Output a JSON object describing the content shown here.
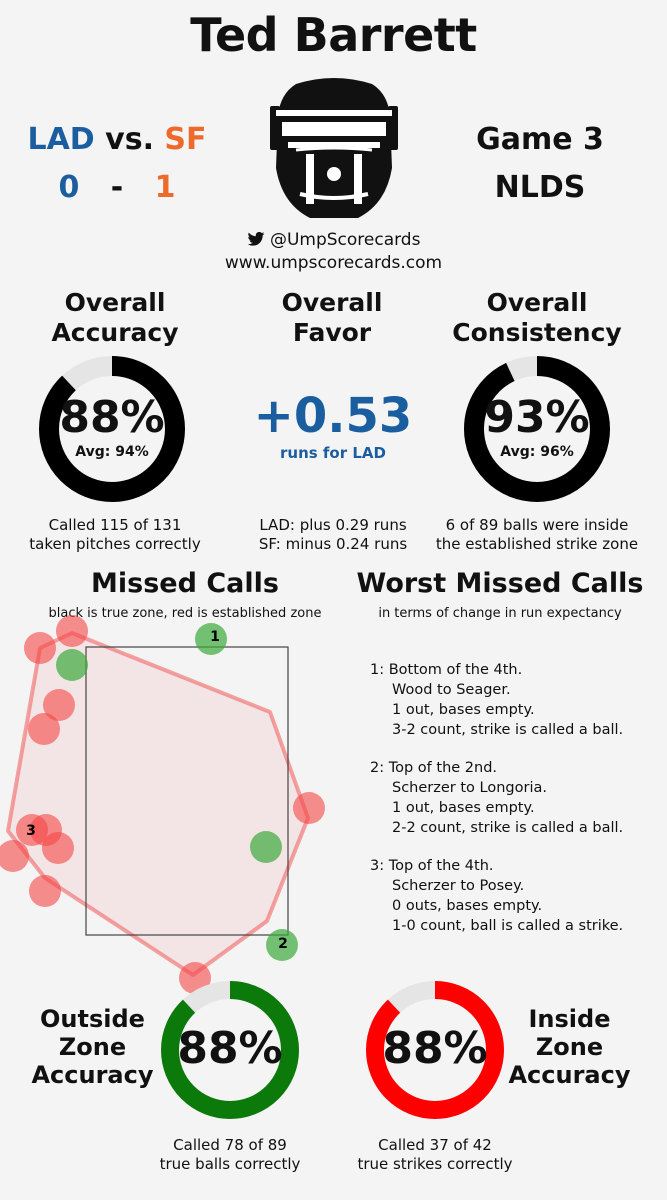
{
  "umpire_name": "Ted Barrett",
  "matchup": {
    "home": "LAD",
    "vs": "vs.",
    "away": "SF",
    "home_score": "0",
    "dash": "-",
    "away_score": "1"
  },
  "game": {
    "number": "Game 3",
    "series": "NLDS"
  },
  "social": {
    "twitter": "@UmpScorecards",
    "website": "www.umpscorecards.com"
  },
  "accuracy": {
    "heading_1": "Overall",
    "heading_2": "Accuracy",
    "value": "88%",
    "avg": "Avg: 94%",
    "fraction": 0.88,
    "desc_1": "Called 115 of 131",
    "desc_2": "taken pitches correctly"
  },
  "favor": {
    "heading_1": "Overall",
    "heading_2": "Favor",
    "value": "+0.53",
    "sub": "runs for LAD",
    "desc_1": "LAD: plus 0.29 runs",
    "desc_2": "SF: minus 0.24 runs"
  },
  "consistency": {
    "heading_1": "Overall",
    "heading_2": "Consistency",
    "value": "93%",
    "avg": "Avg: 96%",
    "fraction": 0.93,
    "desc_1": "6 of 89 balls were inside",
    "desc_2": "the established strike zone"
  },
  "missed_calls": {
    "title": "Missed Calls",
    "note": "black is true zone, red is established zone",
    "labels": [
      "1",
      "2",
      "3"
    ]
  },
  "worst": {
    "title": "Worst Missed Calls",
    "note": "in terms of change in run expectancy",
    "items": [
      {
        "l1": "1: Bottom of the 4th.",
        "l2": "Wood to Seager.",
        "l3": "1 out, bases empty.",
        "l4": "3-2 count, strike is called a ball."
      },
      {
        "l1": "2: Top of the 2nd.",
        "l2": "Scherzer to Longoria.",
        "l3": "1 out, bases empty.",
        "l4": "2-2 count, strike is called a ball."
      },
      {
        "l1": "3: Top of the 4th.",
        "l2": "Scherzer to Posey.",
        "l3": "0 outs, bases empty.",
        "l4": "1-0 count, ball is called a strike."
      }
    ]
  },
  "outside": {
    "label_1": "Outside",
    "label_2": "Zone",
    "label_3": "Accuracy",
    "value": "88%",
    "fraction": 0.88,
    "color": "#0b7a0b",
    "desc_1": "Called 78 of 89",
    "desc_2": "true balls correctly"
  },
  "inside": {
    "label_1": "Inside",
    "label_2": "Zone",
    "label_3": "Accuracy",
    "value": "88%",
    "fraction": 0.88,
    "color": "#ff0000",
    "desc_1": "Called 37 of 42",
    "desc_2": "true strikes correctly"
  }
}
